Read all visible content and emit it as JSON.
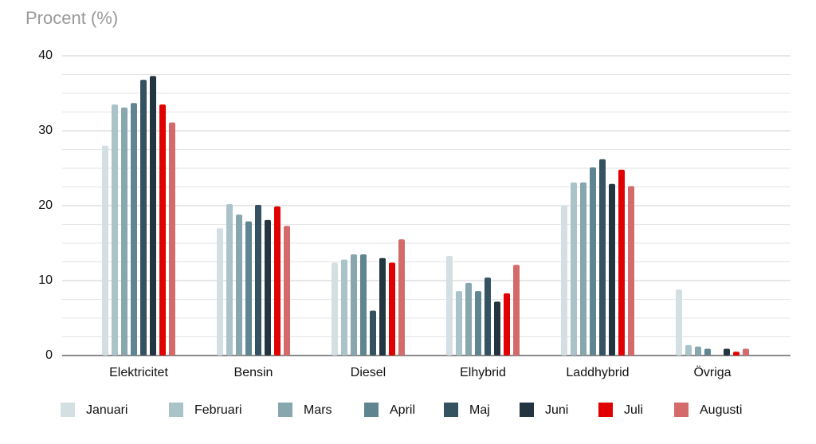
{
  "chart_data": {
    "type": "bar",
    "y_label": "Procent (%)",
    "categories": [
      "Elektricitet",
      "Bensin",
      "Diesel",
      "Elhybrid",
      "Laddhybrid",
      "Övriga"
    ],
    "series": [
      {
        "name": "Januari",
        "color": "#d3dfe2",
        "values": [
          28,
          17,
          12.4,
          13.3,
          20,
          8.8
        ]
      },
      {
        "name": "Februari",
        "color": "#a9c3c9",
        "values": [
          33.5,
          20.2,
          12.8,
          8.6,
          23.1,
          1.4
        ]
      },
      {
        "name": "Mars",
        "color": "#88a6ad",
        "values": [
          33.1,
          18.8,
          13.5,
          9.7,
          23.1,
          1.2
        ]
      },
      {
        "name": "April",
        "color": "#5f8591",
        "values": [
          33.7,
          17.9,
          13.5,
          8.6,
          25.1,
          0.9
        ]
      },
      {
        "name": "Maj",
        "color": "#34525f",
        "values": [
          36.8,
          20.1,
          6,
          10.4,
          26.2,
          null
        ]
      },
      {
        "name": "Juni",
        "color": "#233540",
        "values": [
          37.3,
          18.1,
          13,
          7.2,
          22.9,
          0.9
        ]
      },
      {
        "name": "Juli",
        "color": "#e00000",
        "values": [
          33.5,
          19.9,
          12.4,
          8.3,
          24.8,
          0.5
        ]
      },
      {
        "name": "Augusti",
        "color": "#d46a6a",
        "values": [
          31.1,
          17.3,
          15.5,
          12.1,
          22.6,
          0.9
        ]
      }
    ],
    "ylim": [
      0,
      40
    ],
    "yticks": [
      0,
      10,
      20,
      30,
      40
    ],
    "grid": true,
    "legend": "bottom"
  }
}
